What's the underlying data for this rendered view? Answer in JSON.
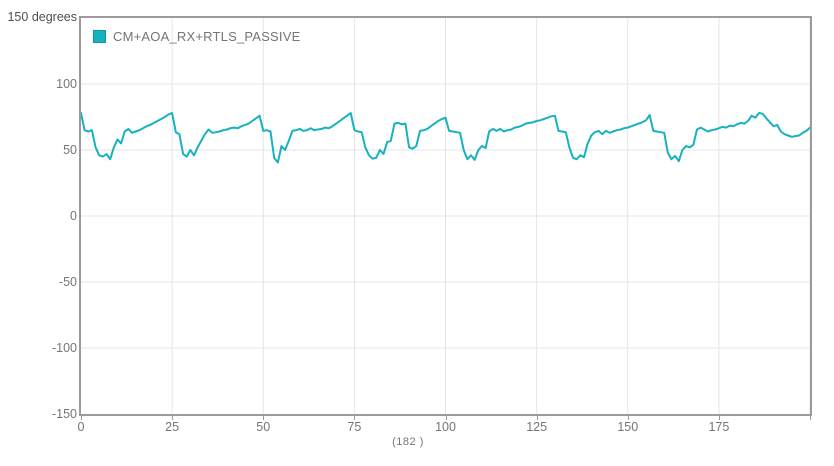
{
  "y_axis": {
    "top_label": "150 degrees"
  },
  "x_axis": {
    "caption": "(182 )"
  },
  "legend": {
    "label": "CM+AOA_RX+RTLS_PASSIVE"
  },
  "colors": {
    "series": "#17b1bf",
    "swatch_border": "#0d97a6",
    "grid": "#e4e4e4",
    "axis_border": "#9b9b9b",
    "tick_text": "#757575"
  },
  "chart_data": {
    "type": "line",
    "title": "",
    "xlabel": "(182 )",
    "ylabel": "degrees",
    "xlim": [
      0,
      200
    ],
    "ylim": [
      -150,
      150
    ],
    "grid": true,
    "legend_position": "top-left-inside",
    "x_ticks": [
      0,
      25,
      50,
      75,
      100,
      125,
      150,
      175
    ],
    "x_tick_marks": [
      0,
      25,
      50,
      75,
      100,
      125,
      150,
      175,
      200
    ],
    "x_grid": [
      25,
      50,
      75,
      100,
      125,
      150,
      175,
      200
    ],
    "y_ticks": [
      100,
      50,
      0,
      -50,
      -100,
      -150
    ],
    "y_grid": [
      100,
      50,
      0,
      -50,
      -100
    ],
    "x_start": 0,
    "x_step": 1,
    "series": [
      {
        "name": "CM+AOA_RX+RTLS_PASSIVE",
        "color": "#17b1bf",
        "values": [
          78,
          65,
          64,
          65,
          52,
          46,
          45,
          47,
          43,
          52,
          58,
          55,
          64,
          66,
          63,
          64,
          65,
          66.5,
          68,
          69,
          70.5,
          72,
          73.5,
          75,
          77,
          78,
          63.5,
          62,
          47,
          45,
          50,
          46,
          52,
          57,
          62,
          65.5,
          63,
          63.5,
          64,
          65,
          65.5,
          66.5,
          67,
          66.5,
          68,
          69,
          70,
          72,
          74,
          76,
          64.5,
          65,
          64,
          44,
          40.5,
          53,
          50,
          57,
          64.5,
          65,
          66,
          64.5,
          65,
          66.5,
          65,
          65.5,
          66,
          67,
          66.5,
          68,
          70,
          72,
          74,
          76,
          78,
          65,
          64,
          63.5,
          52,
          46,
          43.5,
          44,
          50,
          47,
          56,
          57,
          70,
          70.5,
          69.5,
          70,
          52,
          51,
          53,
          64.5,
          65,
          66,
          68,
          70,
          72,
          73.5,
          74.5,
          64.5,
          64,
          63.5,
          63,
          50,
          43,
          46,
          42.5,
          50,
          53,
          51.5,
          64,
          66,
          64.5,
          66,
          64,
          65,
          65.5,
          67,
          67.5,
          68.5,
          70,
          70.5,
          71,
          72,
          72.5,
          73.5,
          74.5,
          75.5,
          76,
          64.5,
          64,
          63.5,
          52,
          44,
          43,
          46,
          44.5,
          55,
          61,
          63.5,
          64.5,
          62,
          64.5,
          63,
          64,
          65,
          65.5,
          66.5,
          67,
          68,
          69,
          70,
          71,
          72.5,
          76.5,
          64.5,
          64,
          63.5,
          63,
          48,
          43,
          45.5,
          41.5,
          50,
          53,
          52,
          54,
          65.5,
          67,
          65.5,
          64,
          65,
          65.5,
          66.5,
          67.5,
          67,
          68.5,
          68,
          69.5,
          70.5,
          70,
          72,
          76,
          74.5,
          78,
          77.5,
          74,
          71,
          68,
          69,
          64,
          62,
          61,
          60,
          60.5,
          61,
          63,
          64.5,
          67
        ]
      }
    ]
  }
}
